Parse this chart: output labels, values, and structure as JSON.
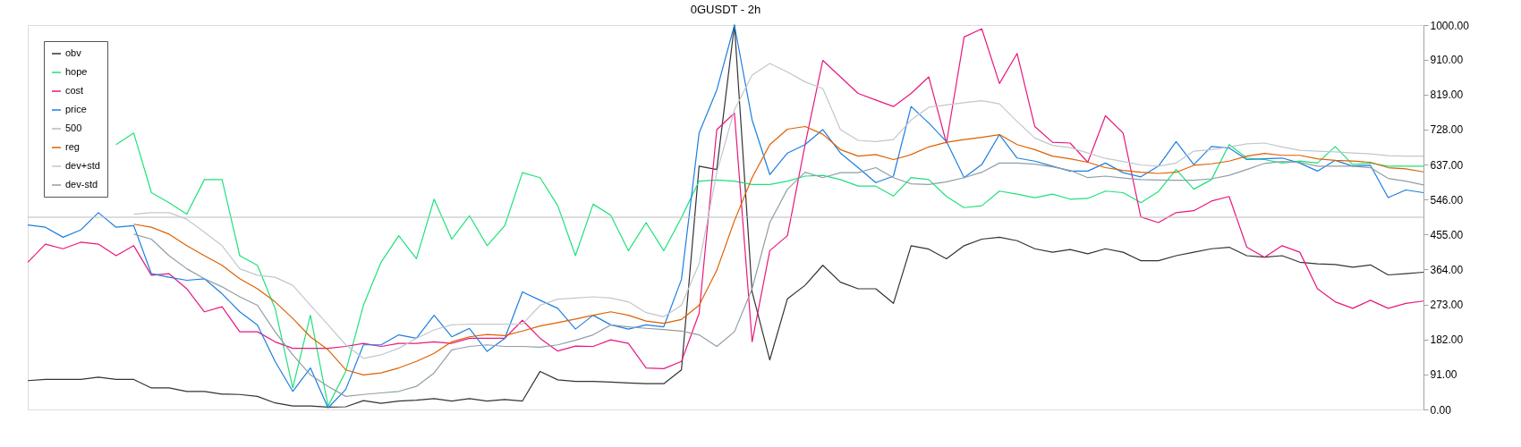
{
  "chart_data": {
    "type": "line",
    "title": "0GUSDT - 2h",
    "categories": [
      null,
      null,
      null,
      null,
      null,
      null,
      null,
      null,
      null,
      null,
      null,
      null,
      null,
      null,
      null,
      null,
      null,
      null,
      null,
      null,
      null,
      null,
      null,
      null,
      null,
      null,
      null,
      null,
      null,
      null,
      null,
      null,
      null,
      null,
      null,
      null,
      null,
      null,
      null,
      null,
      null,
      null,
      null,
      null,
      null,
      null,
      null,
      null,
      null,
      null,
      null,
      null,
      null,
      null,
      null,
      null,
      null,
      null,
      null,
      null,
      null,
      null,
      null,
      null,
      null,
      null,
      null,
      null,
      null,
      null,
      null,
      null,
      null,
      null,
      null,
      null,
      null,
      null,
      null,
      null
    ],
    "series": [
      {
        "name": "obv",
        "color": "#333333",
        "values": [
          75,
          78,
          78,
          78,
          84,
          78,
          78,
          56,
          56,
          47,
          47,
          40,
          39,
          34,
          17,
          9,
          9,
          6,
          7,
          23,
          16,
          22,
          24,
          28,
          22,
          28,
          22,
          26,
          22,
          99,
          77,
          73,
          73,
          71,
          69,
          67,
          67,
          103,
          633,
          624,
          1000,
          306,
          129,
          288,
          323,
          375,
          331,
          314,
          314,
          276,
          426,
          417,
          392,
          426,
          443,
          448,
          439,
          418,
          409,
          416,
          405,
          418,
          409,
          387,
          387,
          400,
          409,
          418,
          422,
          400,
          396,
          400,
          383,
          379,
          377,
          370,
          376,
          350,
          353,
          357
        ]
      },
      {
        "name": "hope",
        "color": "#1de27a",
        "values": [
          null,
          null,
          null,
          null,
          null,
          689,
          719,
          564,
          538,
          508,
          598,
          598,
          400,
          375,
          263,
          56,
          245,
          9,
          99,
          271,
          383,
          452,
          392,
          547,
          443,
          504,
          426,
          478,
          616,
          603,
          530,
          400,
          534,
          505,
          413,
          486,
          413,
          499,
          594,
          597,
          594,
          585,
          585,
          594,
          607,
          609,
          598,
          581,
          581,
          555,
          603,
          598,
          554,
          525,
          530,
          568,
          560,
          551,
          560,
          547,
          549,
          568,
          564,
          538,
          567,
          624,
          573,
          598,
          689,
          654,
          650,
          641,
          646,
          641,
          684,
          637,
          641,
          633,
          633,
          633
        ]
      },
      {
        "name": "cost",
        "color": "#e8177f",
        "values": [
          383,
          430,
          418,
          435,
          430,
          400,
          426,
          349,
          353,
          314,
          254,
          267,
          202,
          202,
          176,
          159,
          159,
          159,
          164,
          172,
          164,
          172,
          172,
          176,
          172,
          185,
          185,
          185,
          232,
          185,
          152,
          165,
          164,
          181,
          172,
          108,
          106,
          125,
          250,
          728,
          771,
          176,
          413,
          452,
          689,
          908,
          865,
          822,
          805,
          788,
          822,
          865,
          693,
          969,
          990,
          848,
          926,
          736,
          695,
          693,
          643,
          764,
          719,
          501,
          486,
          512,
          517,
          542,
          554,
          422,
          396,
          426,
          409,
          314,
          280,
          263,
          284,
          263,
          276,
          282
        ]
      },
      {
        "name": "price",
        "color": "#1e7fe0",
        "values": [
          480,
          474,
          448,
          467,
          512,
          474,
          478,
          353,
          344,
          336,
          340,
          301,
          254,
          220,
          125,
          47,
          108,
          4,
          52,
          168,
          168,
          194,
          185,
          245,
          189,
          211,
          151,
          185,
          306,
          284,
          263,
          209,
          245,
          220,
          209,
          220,
          215,
          338,
          719,
          831,
          1000,
          753,
          611,
          667,
          689,
          728,
          667,
          629,
          590,
          607,
          788,
          745,
          697,
          603,
          637,
          715,
          654,
          646,
          633,
          620,
          620,
          641,
          616,
          605,
          633,
          697,
          637,
          684,
          680,
          650,
          652,
          654,
          641,
          620,
          648,
          633,
          635,
          551,
          571,
          564
        ]
      },
      {
        "name": "500",
        "color": "#bbbbbb",
        "values": [
          500,
          500,
          500,
          500,
          500,
          500,
          500,
          500,
          500,
          500,
          500,
          500,
          500,
          500,
          500,
          500,
          500,
          500,
          500,
          500,
          500,
          500,
          500,
          500,
          500,
          500,
          500,
          500,
          500,
          500,
          500,
          500,
          500,
          500,
          500,
          500,
          500,
          500,
          500,
          500,
          500,
          500,
          500,
          500,
          500,
          500,
          500,
          500,
          500,
          500,
          500,
          500,
          500,
          500,
          500,
          500,
          500,
          500,
          500,
          500,
          500,
          500,
          500,
          500,
          500,
          500,
          500,
          500,
          500,
          500,
          500,
          500,
          500,
          500,
          500,
          500,
          500,
          500,
          500,
          500
        ]
      },
      {
        "name": "reg",
        "color": "#e06000",
        "values": [
          null,
          null,
          null,
          null,
          null,
          null,
          482,
          474,
          456,
          426,
          400,
          375,
          340,
          314,
          280,
          237,
          189,
          155,
          103,
          90,
          95,
          108,
          125,
          146,
          176,
          189,
          195,
          192,
          204,
          217,
          226,
          235,
          245,
          254,
          245,
          230,
          224,
          234,
          271,
          362,
          491,
          603,
          689,
          729,
          736,
          716,
          676,
          659,
          663,
          650,
          663,
          683,
          695,
          702,
          708,
          715,
          689,
          676,
          659,
          652,
          643,
          629,
          622,
          617,
          614,
          617,
          635,
          639,
          646,
          659,
          666,
          661,
          661,
          652,
          648,
          646,
          643,
          629,
          626,
          618
        ]
      },
      {
        "name": "dev+std",
        "color": "#c2c7cc",
        "values": [
          null,
          null,
          null,
          null,
          null,
          null,
          508,
          512,
          512,
          495,
          461,
          426,
          366,
          349,
          344,
          323,
          271,
          220,
          168,
          133,
          142,
          159,
          185,
          207,
          220,
          222,
          222,
          222,
          222,
          271,
          287,
          290,
          293,
          290,
          280,
          252,
          241,
          271,
          379,
          616,
          779,
          870,
          900,
          878,
          852,
          835,
          728,
          700,
          697,
          702,
          753,
          786,
          792,
          798,
          803,
          795,
          749,
          706,
          687,
          681,
          667,
          653,
          645,
          636,
          633,
          641,
          672,
          676,
          683,
          691,
          693,
          683,
          674,
          672,
          670,
          667,
          665,
          660,
          659,
          659
        ]
      },
      {
        "name": "dev-std",
        "color": "#8f9ea8",
        "values": [
          null,
          null,
          null,
          null,
          null,
          null,
          456,
          443,
          400,
          366,
          340,
          319,
          293,
          271,
          202,
          142,
          90,
          60,
          34,
          39,
          43,
          47,
          60,
          95,
          155,
          164,
          168,
          164,
          164,
          162,
          168,
          180,
          194,
          220,
          215,
          211,
          208,
          204,
          194,
          164,
          202,
          314,
          486,
          573,
          617,
          603,
          616,
          616,
          629,
          603,
          587,
          585,
          592,
          603,
          617,
          641,
          641,
          638,
          631,
          622,
          603,
          607,
          602,
          598,
          597,
          596,
          596,
          600,
          609,
          624,
          640,
          645,
          643,
          633,
          633,
          633,
          629,
          601,
          594,
          584
        ]
      }
    ],
    "ylim": [
      0,
      1000
    ],
    "yticks": [
      {
        "value": 0,
        "label": "0.00"
      },
      {
        "value": 91,
        "label": "91.00"
      },
      {
        "value": 182,
        "label": "182.00"
      },
      {
        "value": 273,
        "label": "273.00"
      },
      {
        "value": 364,
        "label": "364.00"
      },
      {
        "value": 455,
        "label": "455.00"
      },
      {
        "value": 546,
        "label": "546.00"
      },
      {
        "value": 637,
        "label": "637.00"
      },
      {
        "value": 728,
        "label": "728.00"
      },
      {
        "value": 819,
        "label": "819.00"
      },
      {
        "value": 910,
        "label": "910.00"
      },
      {
        "value": 1000,
        "label": "1000.00"
      }
    ],
    "tick_labels": "y",
    "grid": false,
    "legend": "top left",
    "marker": "none",
    "line_style": "solid"
  }
}
